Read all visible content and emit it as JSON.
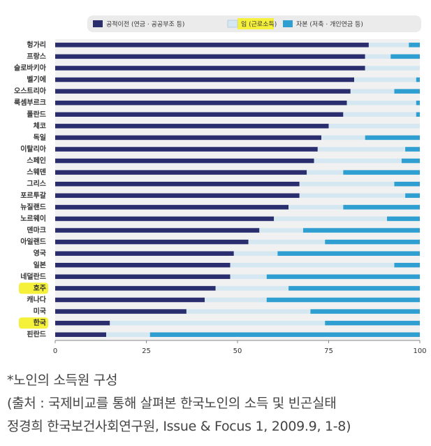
{
  "chart_data": {
    "type": "stacked-bar-horizontal",
    "categories": [
      "헝가리",
      "프랑스",
      "슬로바키아",
      "벨기에",
      "오스트리아",
      "룩셈부르크",
      "폴란드",
      "체코",
      "독일",
      "이탈리아",
      "스페인",
      "스웨덴",
      "그리스",
      "포르투갈",
      "뉴질랜드",
      "노르웨이",
      "덴마크",
      "아일랜드",
      "영국",
      "일본",
      "네덜란드",
      "호주",
      "캐나다",
      "미국",
      "한국",
      "핀란드"
    ],
    "series": [
      {
        "name": "공적이전 (연금 · 공공부조 등)",
        "color": "#2b2e6e",
        "values": [
          86,
          85,
          85,
          82,
          81,
          80,
          79,
          75,
          73,
          72,
          71,
          69,
          67,
          67,
          64,
          60,
          56,
          53,
          49,
          48,
          48,
          44,
          41,
          36,
          15,
          14
        ]
      },
      {
        "name": "임 (근로소득)",
        "color": "#d5e8f1",
        "values": [
          11,
          7,
          15,
          17,
          12,
          19,
          20,
          25,
          12,
          24,
          24,
          10,
          26,
          29,
          15,
          31,
          12,
          21,
          12,
          45,
          10,
          20,
          17,
          34,
          59,
          12
        ]
      },
      {
        "name": "자본 (저축 · 개인연금 등)",
        "color": "#2f9ed1",
        "values": [
          3,
          8,
          0,
          1,
          7,
          1,
          1,
          0,
          15,
          4,
          5,
          21,
          7,
          4,
          21,
          9,
          32,
          26,
          39,
          7,
          42,
          36,
          42,
          30,
          26,
          74
        ]
      }
    ],
    "xlim": [
      0,
      100
    ],
    "xticks": [
      0,
      25,
      50,
      75,
      100
    ],
    "grid": false,
    "legend": "top",
    "notes": [
      "*노인의 소득원 구성",
      "(출처 : 국제비교를 통해 살펴본 한국노인의 소득 및 빈곤실태",
      "정경희 한국보건사회연구원, Issue & Focus 1, 2009.9, 1-8)"
    ]
  }
}
